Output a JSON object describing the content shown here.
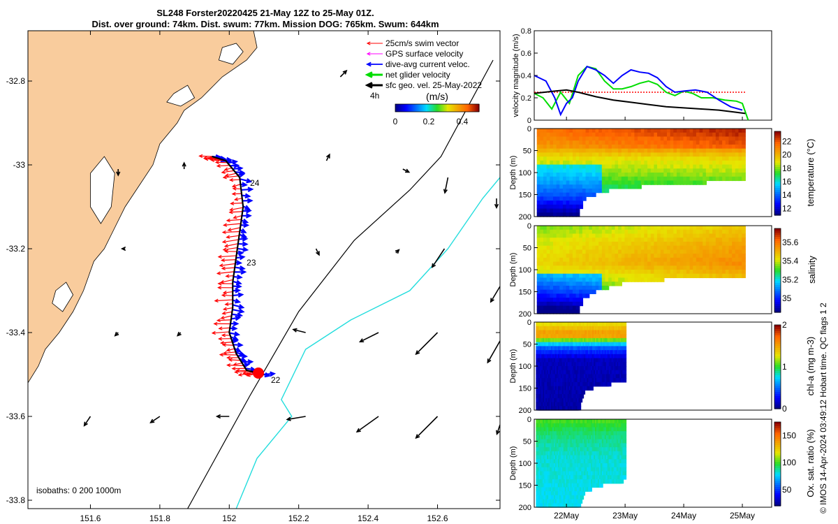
{
  "title": {
    "line1": "SL248 Forster20220425 21-May 12Z to 25-May 01Z.",
    "line2": "Dist. over ground: 74km. Dist. swum: 77km. Mission DOG: 765km. Swum: 644km"
  },
  "side_note": "© IMOS 14-Apr-2024 03:49:12 Hobart time. QC flags 1  2",
  "colors": {
    "land": "#f9cc9d",
    "swim": "#ff0000",
    "gps": "#ff00ff",
    "current": "#0000ff",
    "net": "#00dd00",
    "geo": "#000000",
    "isobath200": "#000000",
    "isobath1000": "#22dddd"
  },
  "chart_data": [
    {
      "type": "scatter",
      "name": "map",
      "xlim": [
        151.42,
        152.78
      ],
      "ylim": [
        -33.82,
        -32.68
      ],
      "xticks": [
        "151.6",
        "151.8",
        "152",
        "152.2",
        "152.4",
        "152.6"
      ],
      "xtick_values": [
        151.6,
        151.8,
        152.0,
        152.2,
        152.4,
        152.6
      ],
      "yticks": [
        "-32.8",
        "-33",
        "-33.2",
        "-33.4",
        "-33.6",
        "-33.8"
      ],
      "ytick_values": [
        -32.8,
        -33.0,
        -33.2,
        -33.4,
        -33.6,
        -33.8
      ],
      "legend": {
        "placement": "top-right",
        "items": [
          {
            "label": "25cm/s swim vector",
            "color": "#ff0000",
            "style": "arrow-thin"
          },
          {
            "label": "GPS surface velocity",
            "color": "#ff00ff",
            "style": "arrow-thin"
          },
          {
            "label": "dive-avg current veloc.",
            "color": "#0000ff",
            "style": "arrow"
          },
          {
            "label": "net glider velocity",
            "color": "#00dd00",
            "style": "arrow-thick"
          },
          {
            "label": "sfc geo. vel. 25-May-2022",
            "color": "#000000",
            "style": "arrow-thick"
          }
        ]
      },
      "colorbar": {
        "label": "(m/s)",
        "note": "4h",
        "ticks": [
          "0",
          "0.2",
          "0.4"
        ],
        "tick_values": [
          0,
          0.2,
          0.4
        ],
        "range": [
          0,
          0.5
        ]
      },
      "isobaths_label": "isobaths: 0   200  1000m",
      "track_day_labels": [
        {
          "text": "24",
          "lon": 152.06,
          "lat": -33.05
        },
        {
          "text": "23",
          "lon": 152.05,
          "lat": -33.24
        },
        {
          "text": "22",
          "lon": 152.12,
          "lat": -33.52
        }
      ],
      "track": [
        [
          151.95,
          -32.98
        ],
        [
          151.99,
          -32.99
        ],
        [
          152.03,
          -33.03
        ],
        [
          152.04,
          -33.1
        ],
        [
          152.03,
          -33.16
        ],
        [
          152.02,
          -33.22
        ],
        [
          152.01,
          -33.28
        ],
        [
          152.01,
          -33.34
        ],
        [
          152.0,
          -33.4
        ],
        [
          152.02,
          -33.45
        ],
        [
          152.05,
          -33.49
        ],
        [
          152.1,
          -33.5
        ]
      ],
      "isobath_200": [
        [
          151.88,
          -33.82
        ],
        [
          151.96,
          -33.7
        ],
        [
          152.06,
          -33.55
        ],
        [
          152.2,
          -33.35
        ],
        [
          152.36,
          -33.18
        ],
        [
          152.52,
          -33.06
        ],
        [
          152.61,
          -32.98
        ],
        [
          152.76,
          -32.75
        ]
      ],
      "isobath_1000": [
        [
          152.02,
          -33.82
        ],
        [
          152.08,
          -33.7
        ],
        [
          152.18,
          -33.6
        ],
        [
          152.15,
          -33.56
        ],
        [
          152.22,
          -33.44
        ],
        [
          152.35,
          -33.37
        ],
        [
          152.52,
          -33.3
        ],
        [
          152.63,
          -33.2
        ],
        [
          152.73,
          -33.08
        ],
        [
          152.78,
          -33.03
        ]
      ],
      "geo_vectors": [
        {
          "lon": 152.32,
          "lat": -32.79,
          "u": 0.02,
          "v": 0.02
        },
        {
          "lon": 151.68,
          "lat": -33.01,
          "u": 0.0,
          "v": -0.02
        },
        {
          "lon": 151.87,
          "lat": -33.01,
          "u": 0.0,
          "v": 0.02
        },
        {
          "lon": 152.28,
          "lat": -32.99,
          "u": 0.01,
          "v": 0.02
        },
        {
          "lon": 152.5,
          "lat": -33.01,
          "u": 0.02,
          "v": -0.01
        },
        {
          "lon": 152.63,
          "lat": -33.03,
          "u": -0.01,
          "v": -0.05
        },
        {
          "lon": 152.77,
          "lat": -33.08,
          "u": 0.0,
          "v": -0.03
        },
        {
          "lon": 151.7,
          "lat": -33.2,
          "u": -0.01,
          "v": 0.0
        },
        {
          "lon": 152.25,
          "lat": -33.2,
          "u": 0.01,
          "v": -0.02
        },
        {
          "lon": 152.48,
          "lat": -33.21,
          "u": 0.01,
          "v": 0.01
        },
        {
          "lon": 152.62,
          "lat": -33.2,
          "u": -0.04,
          "v": -0.06
        },
        {
          "lon": 152.78,
          "lat": -33.29,
          "u": -0.03,
          "v": -0.05
        },
        {
          "lon": 151.68,
          "lat": -33.4,
          "u": -0.01,
          "v": -0.01
        },
        {
          "lon": 151.86,
          "lat": -33.4,
          "u": -0.01,
          "v": -0.01
        },
        {
          "lon": 152.22,
          "lat": -33.4,
          "u": -0.04,
          "v": 0.01
        },
        {
          "lon": 152.43,
          "lat": -33.4,
          "u": -0.06,
          "v": -0.03
        },
        {
          "lon": 152.6,
          "lat": -33.4,
          "u": -0.07,
          "v": -0.07
        },
        {
          "lon": 152.78,
          "lat": -33.42,
          "u": -0.04,
          "v": -0.07
        },
        {
          "lon": 151.6,
          "lat": -33.6,
          "u": -0.02,
          "v": -0.03
        },
        {
          "lon": 151.8,
          "lat": -33.6,
          "u": -0.03,
          "v": -0.02
        },
        {
          "lon": 152.0,
          "lat": -33.6,
          "u": -0.04,
          "v": 0.0
        },
        {
          "lon": 152.22,
          "lat": -33.6,
          "u": -0.06,
          "v": -0.01
        },
        {
          "lon": 152.43,
          "lat": -33.6,
          "u": -0.07,
          "v": -0.05
        },
        {
          "lon": 152.6,
          "lat": -33.6,
          "u": -0.07,
          "v": -0.07
        },
        {
          "lon": 152.78,
          "lat": -33.62,
          "u": -0.01,
          "v": -0.03
        }
      ]
    },
    {
      "type": "line",
      "name": "velocity",
      "ylabel": "velocity magnitude (m/s)",
      "ylim": [
        0,
        0.8
      ],
      "yticks": [
        "0",
        "0.2",
        "0.4",
        "0.6",
        "0.8"
      ],
      "ytick_values": [
        0,
        0.2,
        0.4,
        0.6,
        0.8
      ],
      "xlim": [
        21.45,
        25.5
      ],
      "series": [
        {
          "color": "#ff0000",
          "style": "dotted",
          "x": [
            21.45,
            22.0,
            22.5,
            23.0,
            23.5,
            24.0,
            24.5,
            25.05
          ],
          "y": [
            0.25,
            0.25,
            0.25,
            0.25,
            0.25,
            0.25,
            0.25,
            0.25
          ]
        },
        {
          "color": "#00dd00",
          "x": [
            21.45,
            21.6,
            21.75,
            21.9,
            22.05,
            22.2,
            22.35,
            22.5,
            22.65,
            22.8,
            22.95,
            23.1,
            23.25,
            23.4,
            23.55,
            23.7,
            23.85,
            24.0,
            24.15,
            24.3,
            24.5,
            24.7,
            24.9,
            25.0,
            25.1
          ],
          "y": [
            0.24,
            0.2,
            0.1,
            0.25,
            0.15,
            0.4,
            0.48,
            0.46,
            0.35,
            0.28,
            0.28,
            0.3,
            0.33,
            0.35,
            0.32,
            0.25,
            0.22,
            0.26,
            0.24,
            0.2,
            0.2,
            0.18,
            0.17,
            0.15,
            0.0
          ]
        },
        {
          "color": "#0000ff",
          "x": [
            21.45,
            21.65,
            21.8,
            21.9,
            22.0,
            22.1,
            22.2,
            22.35,
            22.5,
            22.65,
            22.8,
            22.95,
            23.1,
            23.25,
            23.4,
            23.55,
            23.7,
            23.85,
            24.0,
            24.2,
            24.4,
            24.6,
            24.8,
            25.0
          ],
          "y": [
            0.4,
            0.35,
            0.2,
            0.05,
            0.15,
            0.2,
            0.35,
            0.48,
            0.45,
            0.4,
            0.33,
            0.4,
            0.45,
            0.43,
            0.42,
            0.38,
            0.3,
            0.25,
            0.26,
            0.27,
            0.25,
            0.18,
            0.12,
            0.09
          ]
        },
        {
          "color": "#000000",
          "x": [
            21.45,
            21.8,
            22.0,
            22.2,
            22.5,
            22.8,
            23.1,
            23.4,
            23.7,
            24.0,
            24.3,
            24.6,
            24.9,
            25.05
          ],
          "y": [
            0.24,
            0.26,
            0.27,
            0.25,
            0.21,
            0.18,
            0.16,
            0.14,
            0.12,
            0.11,
            0.1,
            0.09,
            0.07,
            0.06
          ]
        }
      ]
    },
    {
      "type": "heatmap",
      "name": "temperature",
      "ylabel": "Depth (m)",
      "ylim": [
        200,
        0
      ],
      "yticks": [
        "0",
        "50",
        "100",
        "150",
        "200"
      ],
      "ytick_values": [
        0,
        50,
        100,
        150,
        200
      ],
      "colorbar": {
        "label": "temperature (°C)",
        "range": [
          11,
          23.5
        ],
        "ticks": [
          "12",
          "14",
          "16",
          "18",
          "20",
          "22"
        ],
        "tick_values": [
          12,
          14,
          16,
          18,
          20,
          22
        ]
      },
      "data_extent": [
        21.5,
        25.05
      ],
      "bottom_depth": [
        [
          21.5,
          200
        ],
        [
          22.2,
          200
        ],
        [
          22.3,
          155
        ],
        [
          22.6,
          140
        ],
        [
          23.0,
          130
        ],
        [
          24.0,
          120
        ],
        [
          25.05,
          115
        ]
      ],
      "profile": [
        [
          0,
          21.5
        ],
        [
          40,
          20.5
        ],
        [
          60,
          19.0
        ],
        [
          100,
          17.8
        ],
        [
          150,
          16.0
        ],
        [
          200,
          13.0
        ]
      ]
    },
    {
      "type": "heatmap",
      "name": "salinity",
      "ylabel": "Depth (m)",
      "ylim": [
        200,
        0
      ],
      "yticks": [
        "0",
        "50",
        "100",
        "150",
        "200"
      ],
      "ytick_values": [
        0,
        50,
        100,
        150,
        200
      ],
      "colorbar": {
        "label": "salinity",
        "range": [
          34.85,
          35.75
        ],
        "ticks": [
          "35",
          "35.2",
          "35.4",
          "35.6"
        ],
        "tick_values": [
          35.0,
          35.2,
          35.4,
          35.6
        ]
      },
      "data_extent": [
        21.5,
        25.05
      ],
      "bottom_depth": [
        [
          21.5,
          200
        ],
        [
          22.2,
          200
        ],
        [
          22.3,
          160
        ],
        [
          22.6,
          140
        ],
        [
          23.0,
          125
        ],
        [
          24.0,
          115
        ],
        [
          25.05,
          110
        ]
      ],
      "profile": [
        [
          0,
          35.35
        ],
        [
          30,
          35.4
        ],
        [
          80,
          35.45
        ],
        [
          120,
          35.35
        ],
        [
          160,
          35.2
        ],
        [
          200,
          35.0
        ]
      ]
    },
    {
      "type": "heatmap",
      "name": "chl-a",
      "ylabel": "Depth (m)",
      "ylim": [
        200,
        0
      ],
      "yticks": [
        "0",
        "50",
        "100",
        "150",
        "200"
      ],
      "ytick_values": [
        0,
        50,
        100,
        150,
        200
      ],
      "colorbar": {
        "label": "chl-a (mg m-3)",
        "range": [
          0,
          2
        ],
        "ticks": [
          "0",
          "1",
          "2"
        ],
        "tick_values": [
          0,
          1,
          2
        ]
      },
      "data_extent": [
        21.5,
        23.0
      ],
      "bottom_depth": [
        [
          21.5,
          200
        ],
        [
          22.2,
          200
        ],
        [
          22.3,
          150
        ],
        [
          22.6,
          140
        ],
        [
          23.0,
          130
        ]
      ],
      "profile": [
        [
          0,
          1.3
        ],
        [
          25,
          1.6
        ],
        [
          50,
          0.5
        ],
        [
          80,
          0.1
        ],
        [
          200,
          0.05
        ]
      ]
    },
    {
      "type": "heatmap",
      "name": "oxygen",
      "ylabel": "Depth (m)",
      "ylim": [
        200,
        0
      ],
      "yticks": [
        "0",
        "50",
        "100",
        "150",
        "200"
      ],
      "ytick_values": [
        0,
        50,
        100,
        150,
        200
      ],
      "colorbar": {
        "label": "Ox. sat. ratio (%)",
        "range": [
          20,
          175
        ],
        "ticks": [
          "50",
          "100",
          "150"
        ],
        "tick_values": [
          50,
          100,
          150
        ]
      },
      "data_extent": [
        21.5,
        23.0
      ],
      "bottom_depth": [
        [
          21.5,
          200
        ],
        [
          22.2,
          200
        ],
        [
          22.3,
          160
        ],
        [
          22.6,
          145
        ],
        [
          23.0,
          135
        ]
      ],
      "profile": [
        [
          0,
          100
        ],
        [
          30,
          90
        ],
        [
          80,
          82
        ],
        [
          200,
          78
        ]
      ]
    }
  ],
  "time_axis": {
    "xticks": [
      "22May",
      "23May",
      "24May",
      "25May"
    ],
    "tick_values": [
      22,
      23,
      24,
      25
    ],
    "xlim": [
      21.45,
      25.5
    ]
  }
}
